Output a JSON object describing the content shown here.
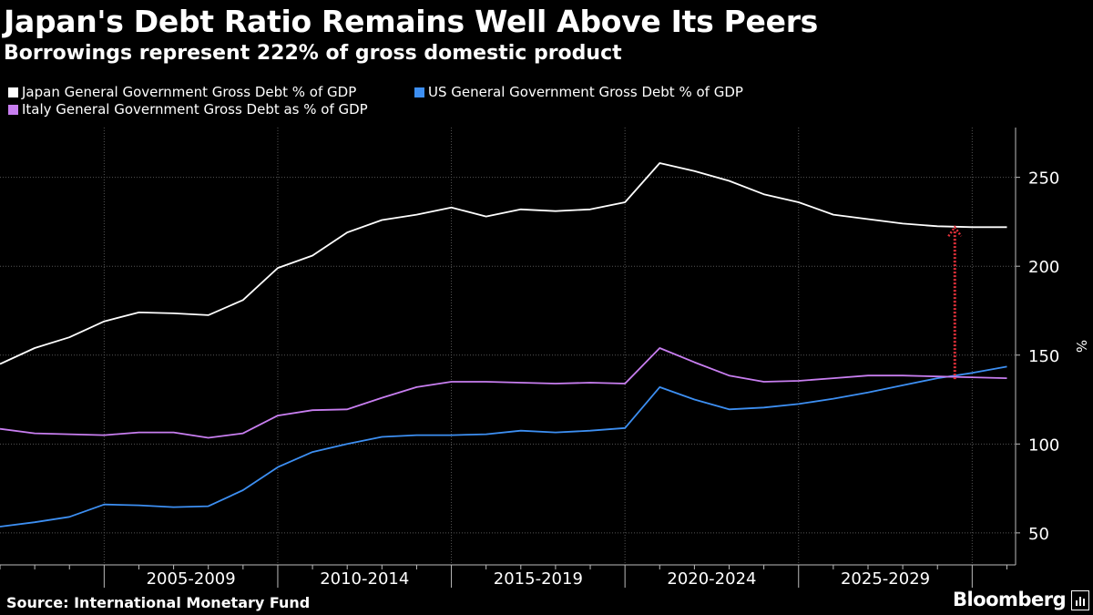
{
  "source": "Source: International Monetary Fund",
  "brand": "Bloomberg",
  "chart_data": {
    "type": "line",
    "title": "Japan's Debt Ratio Remains Well Above Its Peers",
    "subtitle": "Borrowings represent 222% of gross domestic product",
    "ylabel": "%",
    "xlabel": "",
    "ylim": [
      32,
      278
    ],
    "xlim": [
      2000,
      2029.25
    ],
    "yticks": [
      50,
      100,
      150,
      200,
      250
    ],
    "xtick_labels": [
      "2005-2009",
      "2010-2014",
      "2015-2019",
      "2020-2024",
      "2025-2029"
    ],
    "x": [
      2000,
      2001,
      2002,
      2003,
      2004,
      2005,
      2006,
      2007,
      2008,
      2009,
      2010,
      2011,
      2012,
      2013,
      2014,
      2015,
      2016,
      2017,
      2018,
      2019,
      2020,
      2021,
      2022,
      2023,
      2024,
      2025,
      2026,
      2027,
      2028,
      2029
    ],
    "series": [
      {
        "name": "Japan General Government Gross Debt % of GDP",
        "color": "#ffffff",
        "values": [
          145,
          154,
          160,
          169,
          174,
          173.5,
          172.5,
          181,
          199,
          206,
          219,
          226,
          229,
          233,
          228,
          232,
          231,
          232,
          236,
          258,
          253.5,
          248,
          240.5,
          236,
          229,
          226.5,
          224,
          222.5,
          222,
          222
        ]
      },
      {
        "name": "US General Government Gross Debt % of GDP",
        "color": "#3d8ff2",
        "values": [
          53.5,
          56,
          59,
          66,
          65.5,
          64.5,
          65,
          74,
          87,
          95.5,
          100,
          104,
          105,
          105,
          105.5,
          107.5,
          106.5,
          107.5,
          109,
          132,
          125,
          119.5,
          120.5,
          122.5,
          125.5,
          129,
          133,
          137,
          140,
          143.5
        ]
      },
      {
        "name": "Italy General Government Gross Debt as % of GDP",
        "color": "#c87ef0",
        "values": [
          108.5,
          106,
          105.5,
          105,
          106.5,
          106.5,
          103.5,
          106,
          116,
          119,
          119.5,
          126,
          132,
          135,
          135,
          134.5,
          134,
          134.5,
          134,
          154,
          146,
          138.5,
          135,
          135.5,
          137,
          138.5,
          138.5,
          138,
          137.5,
          137
        ]
      }
    ],
    "annotation": {
      "type": "arrow",
      "x": 2027.5,
      "from": 136.5,
      "to": 222,
      "color": "#e0303a"
    }
  }
}
